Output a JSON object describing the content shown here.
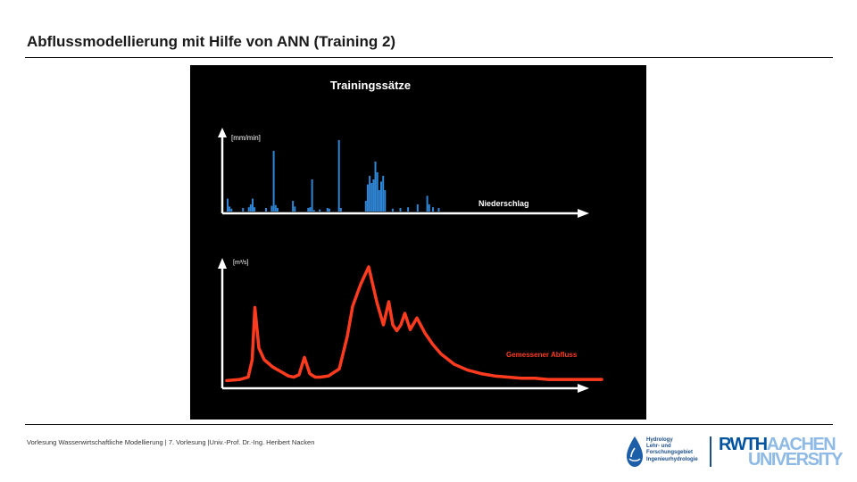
{
  "slide": {
    "title": "Abflussmodellierung mit Hilfe von ANN (Training 2)",
    "footer": "Vorlesung Wasserwirtschaftliche Modellierung | 7. Vorlesung |Univ.-Prof. Dr.-Ing. Heribert Nacken"
  },
  "figure": {
    "title": "Trainingssätze",
    "top_unit": "[mm/min]",
    "top_label": "Niederschlag",
    "bottom_unit": "[m³/s]",
    "bottom_label": "Gemessener Abfluss"
  },
  "chart_data": [
    {
      "type": "bar",
      "title": "Trainingssätze",
      "ylabel": "[mm/min]",
      "series": [
        {
          "name": "Niederschlag",
          "values": [
            [
              0.0,
              0.18
            ],
            [
              0.5,
              0.07
            ],
            [
              1.0,
              0.04
            ],
            [
              4.0,
              0.05
            ],
            [
              5.5,
              0.06
            ],
            [
              6.0,
              0.1
            ],
            [
              6.5,
              0.18
            ],
            [
              7.0,
              0.06
            ],
            [
              10.0,
              0.05
            ],
            [
              11.5,
              0.08
            ],
            [
              12.0,
              0.85
            ],
            [
              12.5,
              0.09
            ],
            [
              13.0,
              0.05
            ],
            [
              17.0,
              0.15
            ],
            [
              17.5,
              0.07
            ],
            [
              21.0,
              0.05
            ],
            [
              21.5,
              0.06
            ],
            [
              22.0,
              0.45
            ],
            [
              22.5,
              0.02
            ],
            [
              24.0,
              0.03
            ],
            [
              26.0,
              0.05
            ],
            [
              26.5,
              0.04
            ],
            [
              29.0,
              1.0
            ],
            [
              29.5,
              0.05
            ],
            [
              36.0,
              0.15
            ],
            [
              36.5,
              0.38
            ],
            [
              37.0,
              0.5
            ],
            [
              37.5,
              0.4
            ],
            [
              38.0,
              0.45
            ],
            [
              38.5,
              0.7
            ],
            [
              39.0,
              0.55
            ],
            [
              39.5,
              0.3
            ],
            [
              40.0,
              0.42
            ],
            [
              40.5,
              0.5
            ],
            [
              41.0,
              0.3
            ],
            [
              43.0,
              0.04
            ],
            [
              45.0,
              0.05
            ],
            [
              47.0,
              0.06
            ],
            [
              49.5,
              0.1
            ],
            [
              52.0,
              0.22
            ],
            [
              52.5,
              0.1
            ],
            [
              53.5,
              0.06
            ],
            [
              55.0,
              0.05
            ]
          ]
        }
      ]
    },
    {
      "type": "line",
      "ylabel": "[m³/s]",
      "series": [
        {
          "name": "Gemessener Abfluss",
          "x": [
            0,
            5,
            8,
            9.5,
            10.5,
            12,
            14,
            17,
            20,
            23,
            25,
            27,
            29,
            31,
            33,
            35,
            38,
            42,
            45,
            47,
            50,
            53,
            56,
            58.5,
            60.5,
            62,
            63.5,
            65,
            66.5,
            68.5,
            71,
            74,
            77,
            80,
            85,
            90,
            95,
            100,
            105,
            110,
            115,
            120,
            130,
            140
          ],
          "y": [
            0.02,
            0.03,
            0.05,
            0.2,
            0.65,
            0.3,
            0.2,
            0.14,
            0.1,
            0.06,
            0.05,
            0.07,
            0.22,
            0.08,
            0.05,
            0.05,
            0.06,
            0.12,
            0.4,
            0.66,
            0.85,
            1.0,
            0.7,
            0.5,
            0.7,
            0.5,
            0.45,
            0.5,
            0.6,
            0.46,
            0.56,
            0.43,
            0.33,
            0.25,
            0.16,
            0.11,
            0.08,
            0.06,
            0.05,
            0.04,
            0.04,
            0.03,
            0.03,
            0.03
          ]
        }
      ]
    }
  ],
  "logos": {
    "hydro_lines": [
      "Hydrology",
      "Lehr- und",
      "Forschungsgebiet",
      "Ingenieurhydrologie"
    ],
    "rwth_a": "RWTH",
    "rwth_b": "AACHEN",
    "rwth_c": "UNIVERSITY"
  }
}
